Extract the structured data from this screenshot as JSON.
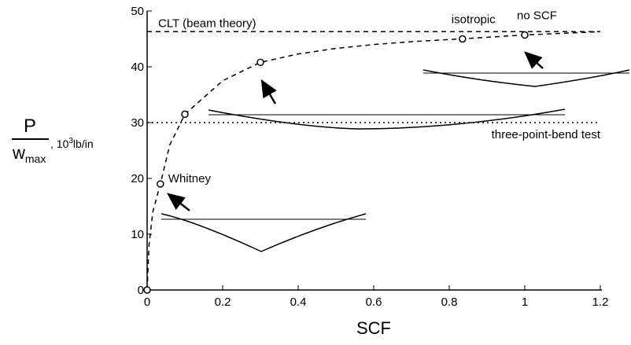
{
  "chart_data": {
    "type": "line",
    "x_label": "SCF",
    "y_label": {
      "numerator": "P",
      "denominator": "w",
      "denominator_subscript": "max",
      "unit_prefix": ", 10",
      "unit_exponent": "3",
      "unit": "lb/in"
    },
    "xlim": [
      0,
      1.2
    ],
    "xticks": [
      0,
      0.2,
      0.4,
      0.6,
      0.8,
      1,
      1.2
    ],
    "ylim": [
      0,
      50
    ],
    "yticks": [
      0,
      10,
      20,
      30,
      40,
      50
    ],
    "series": [
      {
        "x": [
          0,
          0.005,
          0.015,
          0.035,
          0.06,
          0.1,
          0.2,
          0.3,
          0.4,
          0.5,
          0.6,
          0.7,
          0.83,
          1,
          1.2
        ],
        "values": [
          0,
          8,
          14,
          19,
          26,
          31.5,
          37.5,
          40.8,
          42.3,
          43.3,
          44,
          44.5,
          45,
          45.7,
          46.3
        ],
        "color": "#000000",
        "style": "dashed"
      }
    ],
    "points": {
      "x": [
        0,
        0.035,
        0.1,
        0.3,
        0.835,
        1
      ],
      "values": [
        0,
        19,
        31.5,
        40.8,
        45,
        45.7
      ],
      "labels": [
        null,
        "Whitney",
        null,
        null,
        "isotropic",
        "no SCF"
      ]
    },
    "reference_lines": [
      {
        "label": "CLT (beam theory)",
        "value": 46.3,
        "style": "dashed"
      },
      {
        "label": "three-point-bend test",
        "value": 30,
        "style": "dotted"
      }
    ]
  }
}
